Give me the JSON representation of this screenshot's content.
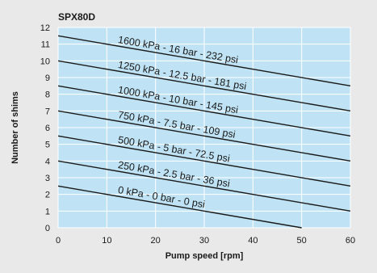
{
  "chart_data": {
    "type": "line",
    "title": "SPX80D",
    "xlabel": "Pump speed [rpm]",
    "ylabel": "Number of shims",
    "xlim": [
      0,
      60
    ],
    "ylim": [
      0,
      12
    ],
    "x_ticks": [
      "0",
      "10",
      "20",
      "30",
      "40",
      "50",
      "60"
    ],
    "y_ticks": [
      "0",
      "1",
      "2",
      "3",
      "4",
      "5",
      "6",
      "7",
      "8",
      "9",
      "10",
      "11",
      "12"
    ],
    "grid": true,
    "colors": {
      "plot_background": "#bfe3f4",
      "grid": "#ffffff",
      "line": "#1a1a1a",
      "page_background": "#e9e9ea"
    },
    "series": [
      {
        "name": "1600 kPa - 16 bar - 232 psi",
        "x": [
          0,
          60
        ],
        "y": [
          11.5,
          8.5
        ]
      },
      {
        "name": "1250 kPa - 12.5 bar - 181 psi",
        "x": [
          0,
          60
        ],
        "y": [
          10.0,
          7.0
        ]
      },
      {
        "name": "1000 kPa - 10 bar - 145 psi",
        "x": [
          0,
          60
        ],
        "y": [
          8.5,
          5.5
        ]
      },
      {
        "name": "750 kPa - 7.5 bar - 109 psi",
        "x": [
          0,
          60
        ],
        "y": [
          7.0,
          4.0
        ]
      },
      {
        "name": "500 kPa - 5 bar - 72.5 psi",
        "x": [
          0,
          60
        ],
        "y": [
          5.5,
          2.5
        ]
      },
      {
        "name": "250 kPa - 2.5 bar - 36 psi",
        "x": [
          0,
          60
        ],
        "y": [
          4.0,
          1.0
        ]
      },
      {
        "name": "0 kPa - 0 bar - 0 psi",
        "x": [
          0,
          50
        ],
        "y": [
          2.5,
          0
        ]
      }
    ]
  }
}
